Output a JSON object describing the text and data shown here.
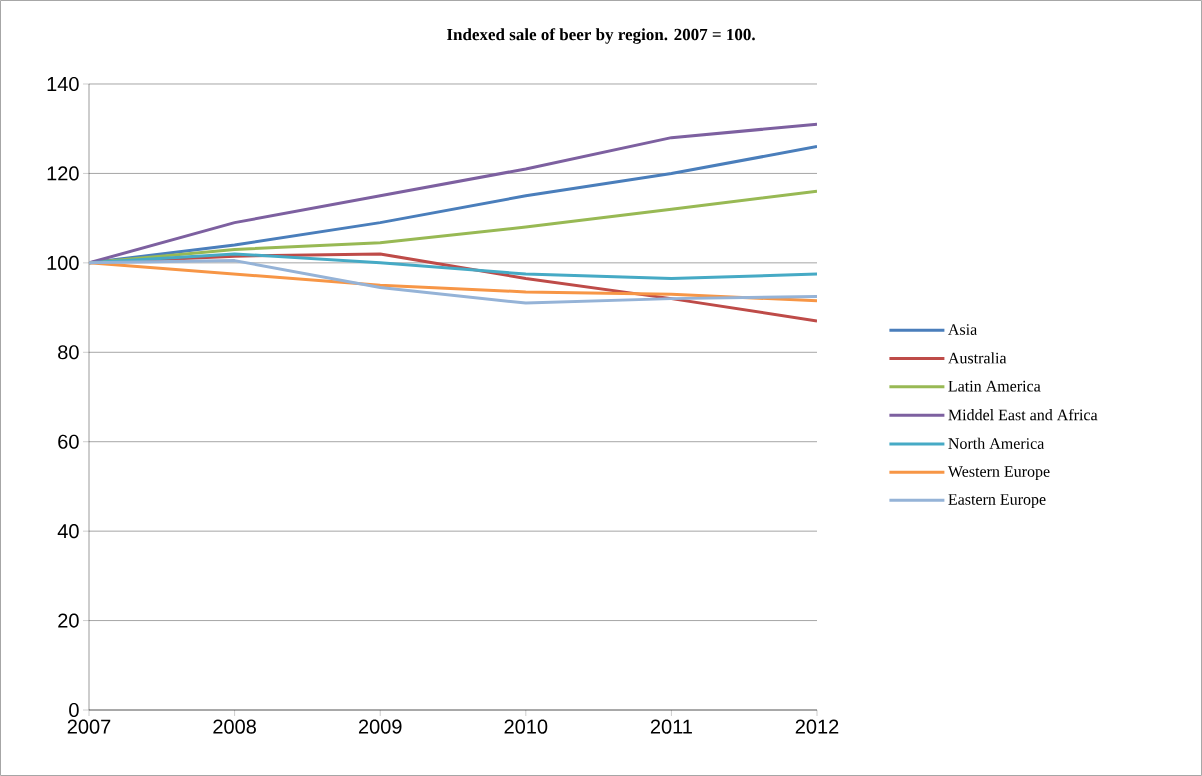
{
  "chart_data": {
    "type": "line",
    "title": "Indexed sale of beer by region. 2007 = 100.",
    "x": [
      2007,
      2008,
      2009,
      2010,
      2011,
      2012
    ],
    "series": [
      {
        "name": "Asia",
        "color": "#4a7ebb",
        "values": [
          100,
          104,
          109,
          115,
          120,
          126
        ]
      },
      {
        "name": "Australia",
        "color": "#be4b48",
        "values": [
          100,
          101.5,
          102,
          96.5,
          92,
          87
        ]
      },
      {
        "name": "Latin America",
        "color": "#98b954",
        "values": [
          100,
          103,
          104.5,
          108,
          112,
          116
        ]
      },
      {
        "name": "Middel East and Africa",
        "color": "#7d60a0",
        "values": [
          100,
          109,
          115,
          121,
          128,
          131
        ]
      },
      {
        "name": "North America",
        "color": "#46aac5",
        "values": [
          100,
          102,
          100,
          97.5,
          96.5,
          97.5
        ]
      },
      {
        "name": "Western Europe",
        "color": "#f79646",
        "values": [
          100,
          97.5,
          95,
          93.5,
          93,
          91.5
        ]
      },
      {
        "name": "Eastern Europe",
        "color": "#95b3d7",
        "values": [
          100,
          100.5,
          94.5,
          91,
          92,
          92.5
        ]
      }
    ],
    "xlim": [
      2007,
      2012
    ],
    "xticks": [
      2007,
      2008,
      2009,
      2010,
      2011,
      2012
    ],
    "ylim": [
      0,
      140
    ],
    "yticks": [
      0,
      20,
      40,
      60,
      80,
      100,
      120,
      140
    ],
    "grid": "y",
    "legend": "right",
    "marker": "none",
    "line_style": "solid"
  }
}
